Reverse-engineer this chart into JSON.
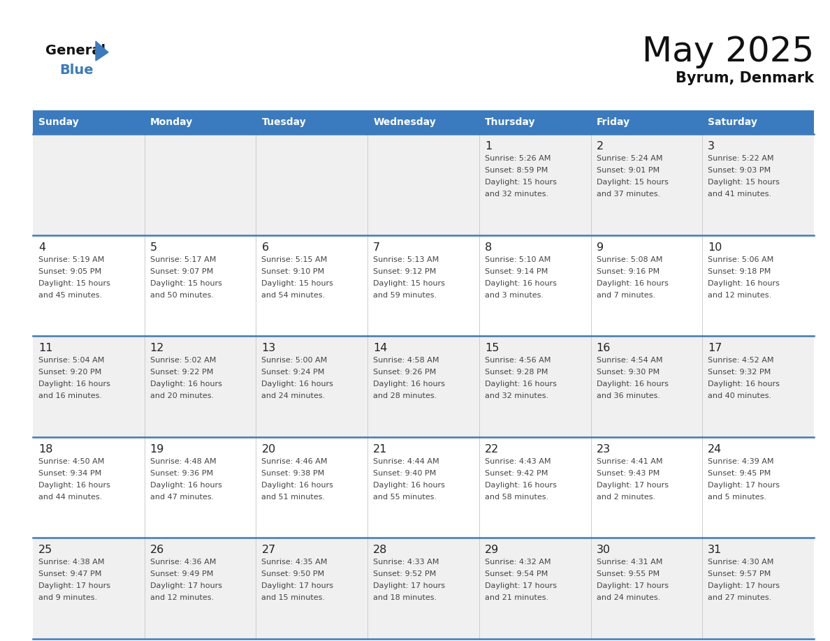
{
  "title": "May 2025",
  "subtitle": "Byrum, Denmark",
  "header_color": "#3a7bbf",
  "header_text_color": "#ffffff",
  "day_names": [
    "Sunday",
    "Monday",
    "Tuesday",
    "Wednesday",
    "Thursday",
    "Friday",
    "Saturday"
  ],
  "bg_color": "#ffffff",
  "row0_color": "#f0f0f0",
  "row1_color": "#ffffff",
  "cell_text_color": "#444444",
  "day_num_color": "#222222",
  "line_color": "#3a7bbf",
  "logo_general_color": "#111111",
  "logo_blue_color": "#3a7bbf",
  "logo_triangle_color": "#3a7bbf",
  "calendar": [
    [
      null,
      null,
      null,
      null,
      {
        "day": 1,
        "sunrise": "5:26 AM",
        "sunset": "8:59 PM",
        "dl1": "Daylight: 15 hours",
        "dl2": "and 32 minutes."
      },
      {
        "day": 2,
        "sunrise": "5:24 AM",
        "sunset": "9:01 PM",
        "dl1": "Daylight: 15 hours",
        "dl2": "and 37 minutes."
      },
      {
        "day": 3,
        "sunrise": "5:22 AM",
        "sunset": "9:03 PM",
        "dl1": "Daylight: 15 hours",
        "dl2": "and 41 minutes."
      }
    ],
    [
      {
        "day": 4,
        "sunrise": "5:19 AM",
        "sunset": "9:05 PM",
        "dl1": "Daylight: 15 hours",
        "dl2": "and 45 minutes."
      },
      {
        "day": 5,
        "sunrise": "5:17 AM",
        "sunset": "9:07 PM",
        "dl1": "Daylight: 15 hours",
        "dl2": "and 50 minutes."
      },
      {
        "day": 6,
        "sunrise": "5:15 AM",
        "sunset": "9:10 PM",
        "dl1": "Daylight: 15 hours",
        "dl2": "and 54 minutes."
      },
      {
        "day": 7,
        "sunrise": "5:13 AM",
        "sunset": "9:12 PM",
        "dl1": "Daylight: 15 hours",
        "dl2": "and 59 minutes."
      },
      {
        "day": 8,
        "sunrise": "5:10 AM",
        "sunset": "9:14 PM",
        "dl1": "Daylight: 16 hours",
        "dl2": "and 3 minutes."
      },
      {
        "day": 9,
        "sunrise": "5:08 AM",
        "sunset": "9:16 PM",
        "dl1": "Daylight: 16 hours",
        "dl2": "and 7 minutes."
      },
      {
        "day": 10,
        "sunrise": "5:06 AM",
        "sunset": "9:18 PM",
        "dl1": "Daylight: 16 hours",
        "dl2": "and 12 minutes."
      }
    ],
    [
      {
        "day": 11,
        "sunrise": "5:04 AM",
        "sunset": "9:20 PM",
        "dl1": "Daylight: 16 hours",
        "dl2": "and 16 minutes."
      },
      {
        "day": 12,
        "sunrise": "5:02 AM",
        "sunset": "9:22 PM",
        "dl1": "Daylight: 16 hours",
        "dl2": "and 20 minutes."
      },
      {
        "day": 13,
        "sunrise": "5:00 AM",
        "sunset": "9:24 PM",
        "dl1": "Daylight: 16 hours",
        "dl2": "and 24 minutes."
      },
      {
        "day": 14,
        "sunrise": "4:58 AM",
        "sunset": "9:26 PM",
        "dl1": "Daylight: 16 hours",
        "dl2": "and 28 minutes."
      },
      {
        "day": 15,
        "sunrise": "4:56 AM",
        "sunset": "9:28 PM",
        "dl1": "Daylight: 16 hours",
        "dl2": "and 32 minutes."
      },
      {
        "day": 16,
        "sunrise": "4:54 AM",
        "sunset": "9:30 PM",
        "dl1": "Daylight: 16 hours",
        "dl2": "and 36 minutes."
      },
      {
        "day": 17,
        "sunrise": "4:52 AM",
        "sunset": "9:32 PM",
        "dl1": "Daylight: 16 hours",
        "dl2": "and 40 minutes."
      }
    ],
    [
      {
        "day": 18,
        "sunrise": "4:50 AM",
        "sunset": "9:34 PM",
        "dl1": "Daylight: 16 hours",
        "dl2": "and 44 minutes."
      },
      {
        "day": 19,
        "sunrise": "4:48 AM",
        "sunset": "9:36 PM",
        "dl1": "Daylight: 16 hours",
        "dl2": "and 47 minutes."
      },
      {
        "day": 20,
        "sunrise": "4:46 AM",
        "sunset": "9:38 PM",
        "dl1": "Daylight: 16 hours",
        "dl2": "and 51 minutes."
      },
      {
        "day": 21,
        "sunrise": "4:44 AM",
        "sunset": "9:40 PM",
        "dl1": "Daylight: 16 hours",
        "dl2": "and 55 minutes."
      },
      {
        "day": 22,
        "sunrise": "4:43 AM",
        "sunset": "9:42 PM",
        "dl1": "Daylight: 16 hours",
        "dl2": "and 58 minutes."
      },
      {
        "day": 23,
        "sunrise": "4:41 AM",
        "sunset": "9:43 PM",
        "dl1": "Daylight: 17 hours",
        "dl2": "and 2 minutes."
      },
      {
        "day": 24,
        "sunrise": "4:39 AM",
        "sunset": "9:45 PM",
        "dl1": "Daylight: 17 hours",
        "dl2": "and 5 minutes."
      }
    ],
    [
      {
        "day": 25,
        "sunrise": "4:38 AM",
        "sunset": "9:47 PM",
        "dl1": "Daylight: 17 hours",
        "dl2": "and 9 minutes."
      },
      {
        "day": 26,
        "sunrise": "4:36 AM",
        "sunset": "9:49 PM",
        "dl1": "Daylight: 17 hours",
        "dl2": "and 12 minutes."
      },
      {
        "day": 27,
        "sunrise": "4:35 AM",
        "sunset": "9:50 PM",
        "dl1": "Daylight: 17 hours",
        "dl2": "and 15 minutes."
      },
      {
        "day": 28,
        "sunrise": "4:33 AM",
        "sunset": "9:52 PM",
        "dl1": "Daylight: 17 hours",
        "dl2": "and 18 minutes."
      },
      {
        "day": 29,
        "sunrise": "4:32 AM",
        "sunset": "9:54 PM",
        "dl1": "Daylight: 17 hours",
        "dl2": "and 21 minutes."
      },
      {
        "day": 30,
        "sunrise": "4:31 AM",
        "sunset": "9:55 PM",
        "dl1": "Daylight: 17 hours",
        "dl2": "and 24 minutes."
      },
      {
        "day": 31,
        "sunrise": "4:30 AM",
        "sunset": "9:57 PM",
        "dl1": "Daylight: 17 hours",
        "dl2": "and 27 minutes."
      }
    ]
  ]
}
